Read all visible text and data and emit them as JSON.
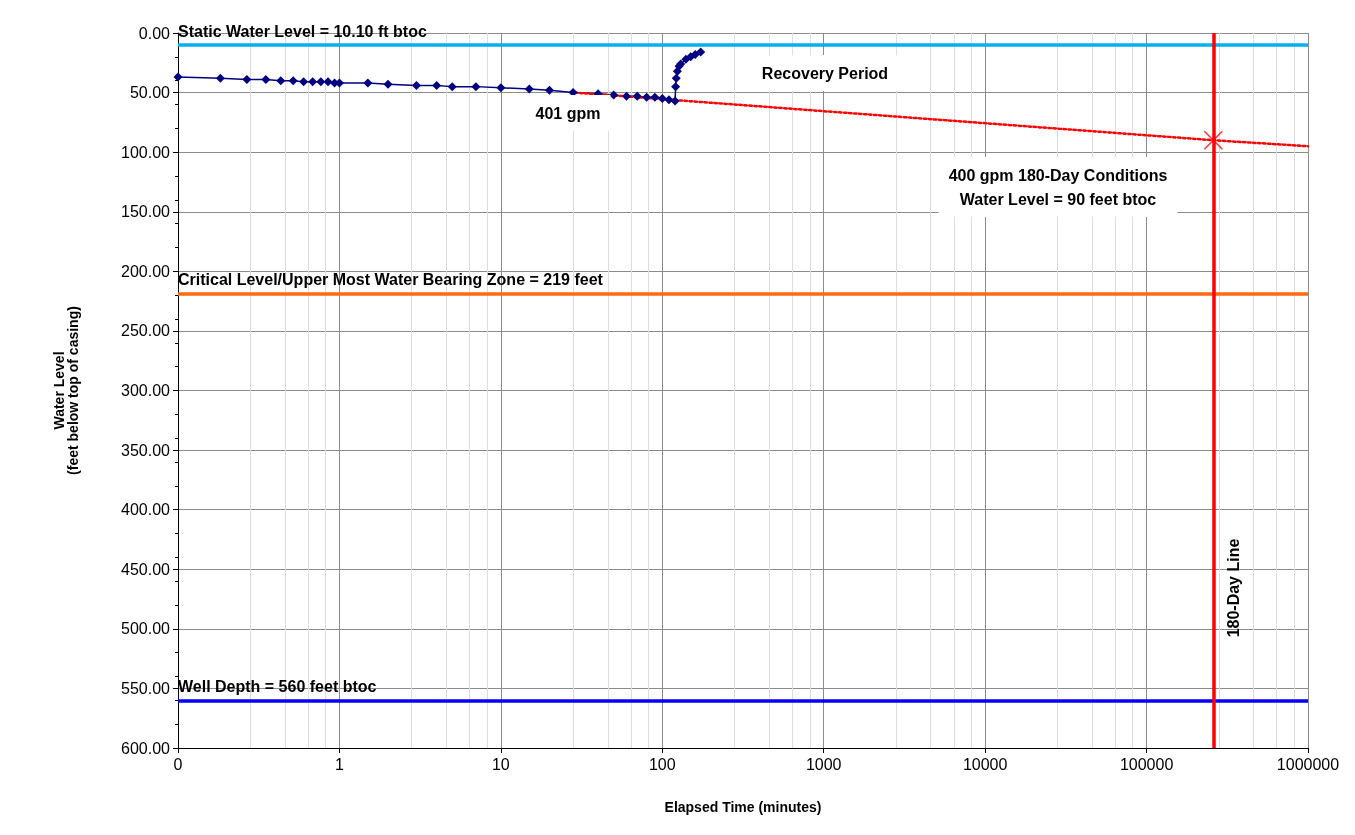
{
  "chart_data": {
    "type": "line",
    "xlabel": "Elapsed Time (minutes)",
    "ylabel": "Water Level\n(feet below top of casing)",
    "log": "x",
    "grid": true,
    "xlim": [
      0.1,
      1000000
    ],
    "xticks": [
      {
        "value": 0.1,
        "label": "0"
      },
      1,
      10,
      100,
      1000,
      10000,
      100000,
      1000000
    ],
    "ylim": [
      600,
      0
    ],
    "yticks": [
      {
        "value": 0,
        "label": "0.00"
      },
      {
        "value": 50,
        "label": "50.00"
      },
      {
        "value": 100,
        "label": "100.00"
      },
      {
        "value": 150,
        "label": "150.00"
      },
      {
        "value": 200,
        "label": "200.00"
      },
      {
        "value": 250,
        "label": "250.00"
      },
      {
        "value": 300,
        "label": "300.00"
      },
      {
        "value": 350,
        "label": "350.00"
      },
      {
        "value": 400,
        "label": "400.00"
      },
      {
        "value": 450,
        "label": "450.00"
      },
      {
        "value": 500,
        "label": "500.00"
      },
      {
        "value": 550,
        "label": "550.00"
      },
      {
        "value": 600,
        "label": "600.00"
      }
    ],
    "series": [
      {
        "color": "#000080",
        "marker": "diamond",
        "line_style": "solid",
        "x": [
          0.1,
          0.183,
          0.267,
          0.35,
          0.433,
          0.517,
          0.6,
          0.683,
          0.767,
          0.85,
          0.933,
          1,
          1.5,
          2,
          3,
          4,
          5,
          7,
          10,
          15,
          20,
          28,
          40,
          50,
          60,
          70,
          80,
          90,
          100,
          110,
          120,
          121,
          122,
          124,
          127,
          130,
          140,
          150,
          160,
          173
        ],
        "values": [
          37,
          38,
          39,
          39,
          40,
          40,
          41,
          41,
          41,
          41,
          42,
          42,
          42,
          43,
          44,
          44,
          45,
          45,
          46,
          47,
          48,
          50,
          51,
          52,
          53,
          53,
          54,
          54,
          55,
          56,
          57,
          45,
          38,
          32,
          28,
          26,
          22,
          20,
          18,
          16
        ]
      },
      {
        "color": "#ff0000",
        "marker": "none",
        "line_style": "dotted",
        "x": [
          28.7,
          259200,
          1000000
        ],
        "values": [
          50,
          90,
          95
        ]
      },
      {
        "type": "scatter",
        "color": "#ff0000",
        "marker": "cross",
        "x": [
          259200
        ],
        "values": [
          90
        ]
      }
    ],
    "ref_lines": [
      {
        "axis": "y",
        "value": 10.1,
        "label": "Static Water Level = 10.10 ft btoc",
        "color": "#00b0f0"
      },
      {
        "axis": "y",
        "value": 219,
        "label": "Critical Level/Upper Most Water Bearing Zone = 219 feet",
        "color": "#ff6a13"
      },
      {
        "axis": "y",
        "value": 560,
        "label": "Well Depth = 560 feet btoc",
        "color": "#0000ff"
      },
      {
        "axis": "x",
        "value": 259200,
        "label": "180-Day Line",
        "color": "#ff0000"
      }
    ],
    "annotations": [
      "Recovery Period",
      "401 gpm",
      "400 gpm 180-Day Conditions\nWater Level = 90 feet btoc"
    ]
  }
}
